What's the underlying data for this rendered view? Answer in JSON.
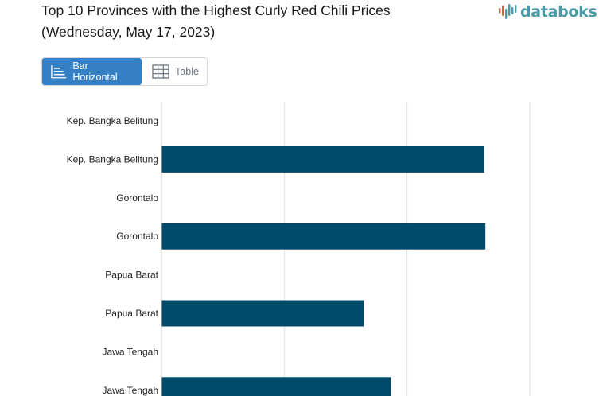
{
  "title": {
    "line1": "Top 10 Provinces with the Highest Curly Red Chili Prices",
    "line2": "(Wednesday, May 17, 2023)"
  },
  "logo": {
    "text": "databoks",
    "icon": "databoks-bars-icon"
  },
  "tabs": [
    {
      "label": "Bar Horizontal",
      "icon": "bar-chart-icon",
      "active": true
    },
    {
      "label": "Table",
      "icon": "table-grid-icon",
      "active": false
    }
  ],
  "colors": {
    "bar": "#004b6b",
    "grid": "#e2e2e2",
    "tab_active": "#3580c4",
    "logo": "#4a9aa7",
    "logo_accent": "#e05a3a"
  },
  "chart_data": {
    "type": "bar",
    "orientation": "horizontal",
    "categories": [
      "Kep. Bangka Belitung",
      "Kep. Bangka Belitung",
      "Gorontalo",
      "Gorontalo",
      "Papua Barat",
      "Papua Barat",
      "Jawa Tengah",
      "Jawa Tengah"
    ],
    "values": [
      null,
      52500,
      null,
      52700,
      null,
      32900,
      null,
      37300
    ],
    "xlim": [
      0,
      60000
    ],
    "grid": true,
    "legend": "none"
  }
}
